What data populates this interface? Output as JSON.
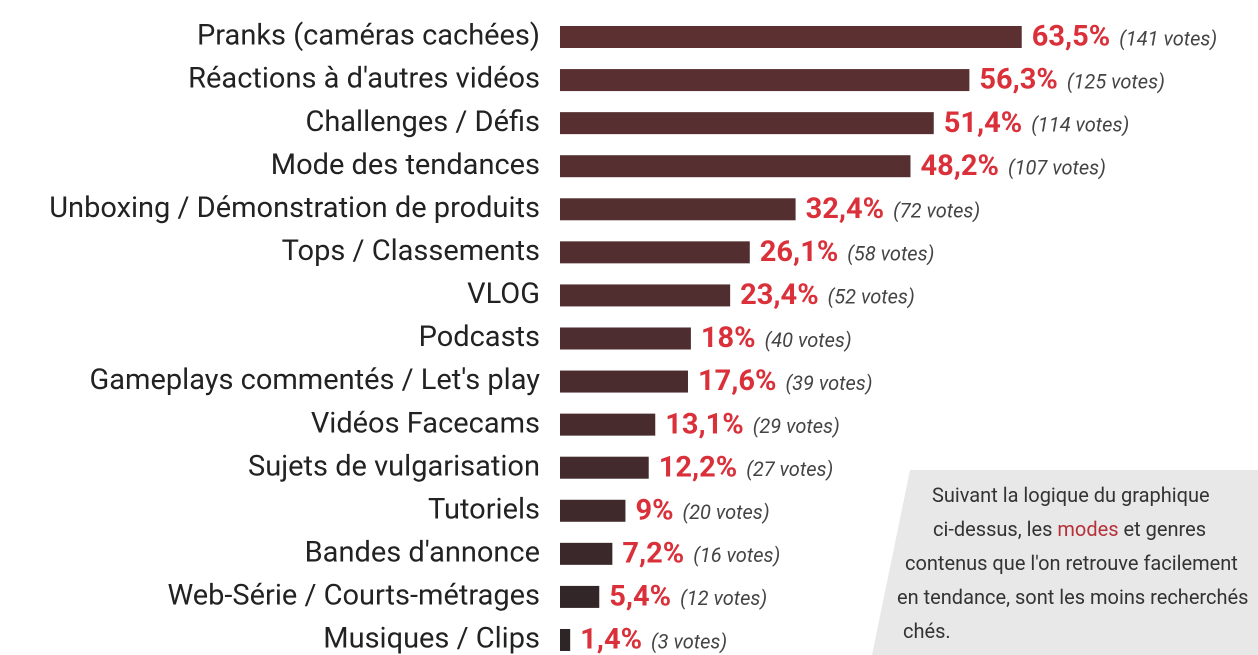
{
  "chart_data": {
    "type": "hbar",
    "categories": [
      "Pranks (caméras cachées)",
      "Réactions à d'autres vidéos",
      "Challenges / Défis",
      "Mode des tendances",
      "Unboxing / Démonstration de produits",
      "Tops / Classements",
      "VLOG",
      "Podcasts",
      "Gameplays commentés / Let's play",
      "Vidéos Facecams",
      "Sujets de vulgarisation",
      "Tutoriels",
      "Bandes d'annonce",
      "Web-Série / Courts-métrages",
      "Musiques / Clips"
    ],
    "values": [
      63.5,
      56.3,
      51.4,
      48.2,
      32.4,
      26.1,
      23.4,
      18,
      17.6,
      13.1,
      12.2,
      9,
      7.2,
      5.4,
      1.4
    ],
    "value_labels": [
      "63,5%",
      "56,3%",
      "51,4%",
      "48,2%",
      "32,4%",
      "26,1%",
      "23,4%",
      "18%",
      "17,6%",
      "13,1%",
      "12,2%",
      "9%",
      "7,2%",
      "5,4%",
      "1,4%"
    ],
    "vote_labels": [
      "(141 votes)",
      "(125 votes)",
      "(114 votes)",
      "(107 votes)",
      "(72 votes)",
      "(58 votes)",
      "(52 votes)",
      "(40 votes)",
      "(39 votes)",
      "(29 votes)",
      "(27 votes)",
      "(20 votes)",
      "(16 votes)",
      "(12 votes)",
      "(3 votes)"
    ],
    "colors": [
      "#5c2f31",
      "#5a2f31",
      "#582f31",
      "#562f31",
      "#542f30",
      "#522e30",
      "#502e30",
      "#4d2d2f",
      "#4a2c2e",
      "#472b2d",
      "#432a2c",
      "#3f292b",
      "#3a282a",
      "#332628",
      "#2e2527"
    ],
    "xlim": [
      0,
      70
    ],
    "note": [
      [
        {
          "text": "Suivant la logique du graphique"
        }
      ],
      [
        {
          "text": "ci-dessus, les "
        },
        {
          "text": "modes",
          "color": "#b5303a"
        },
        {
          "text": " et genres"
        }
      ],
      [
        {
          "text": "contenus que l'on retrouve facilement"
        }
      ],
      [
        {
          "text": "en tendance, sont les moins recherchés"
        }
      ],
      [
        {
          "text": "chés."
        }
      ]
    ]
  }
}
